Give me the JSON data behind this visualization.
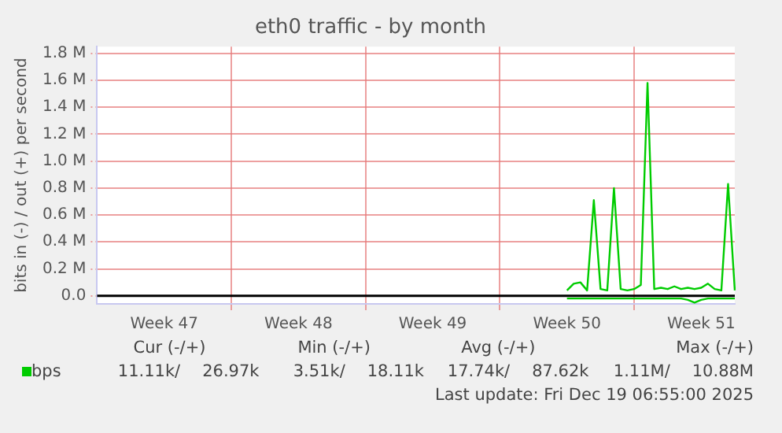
{
  "chart_data": {
    "type": "line",
    "title": "eth0 traffic - by month",
    "ylabel": "bits in (-) / out (+) per second",
    "categories": [
      null,
      null,
      null,
      null,
      null,
      null,
      null,
      null,
      null,
      null,
      "Week 47",
      null,
      null,
      null,
      null,
      null,
      null,
      null,
      null,
      null,
      null,
      null,
      null,
      null,
      null,
      null,
      null,
      null,
      null,
      null,
      "Week 48",
      null,
      null,
      null,
      null,
      null,
      null,
      null,
      null,
      null,
      null,
      null,
      null,
      null,
      null,
      null,
      null,
      null,
      null,
      null,
      "Week 49",
      null,
      null,
      null,
      null,
      null,
      null,
      null,
      null,
      null,
      null,
      null,
      null,
      null,
      null,
      null,
      null,
      null,
      null,
      null,
      "Week 50",
      null,
      null,
      null,
      null,
      null,
      null,
      null,
      null,
      null,
      null,
      null,
      null,
      null,
      null,
      null,
      null,
      null,
      null,
      null,
      "Week 51",
      null,
      null,
      null,
      null,
      null
    ],
    "ylim": [
      -0.06,
      1.85
    ],
    "yticks": [
      {
        "value": 0,
        "label": "0.0"
      },
      {
        "value": 0.2,
        "label": "0.2 M"
      },
      {
        "value": 0.4,
        "label": "0.4 M"
      },
      {
        "value": 0.6,
        "label": "0.6 M"
      },
      {
        "value": 0.8,
        "label": "0.8 M"
      },
      {
        "value": 1.0,
        "label": "1.0 M"
      },
      {
        "value": 1.2,
        "label": "1.2 M"
      },
      {
        "value": 1.4,
        "label": "1.4 M"
      },
      {
        "value": 1.6,
        "label": "1.6 M"
      },
      {
        "value": 1.8,
        "label": "1.8 M"
      }
    ],
    "grid": true,
    "legend": "bottom",
    "ref_lines": [
      {
        "axis": "y",
        "value": 0,
        "color": "#000000"
      }
    ],
    "series": [
      {
        "name": "bps",
        "color": "#00cc00",
        "values": [
          null,
          null,
          null,
          null,
          null,
          null,
          null,
          null,
          null,
          null,
          null,
          null,
          null,
          null,
          null,
          null,
          null,
          null,
          null,
          null,
          null,
          null,
          null,
          null,
          null,
          null,
          null,
          null,
          null,
          null,
          null,
          null,
          null,
          null,
          null,
          null,
          null,
          null,
          null,
          null,
          null,
          null,
          null,
          null,
          null,
          null,
          null,
          null,
          null,
          null,
          null,
          null,
          null,
          null,
          null,
          null,
          null,
          null,
          null,
          null,
          null,
          null,
          null,
          null,
          null,
          null,
          null,
          null,
          null,
          null,
          0.04,
          0.09,
          0.1,
          0.04,
          0.71,
          0.05,
          0.04,
          0.8,
          0.05,
          0.04,
          0.05,
          0.08,
          1.58,
          0.05,
          0.06,
          0.05,
          0.07,
          0.05,
          0.06,
          0.05,
          0.06,
          0.09,
          0.05,
          0.04,
          0.83,
          0.04
        ]
      },
      {
        "color": "#00cc00",
        "values": [
          null,
          null,
          null,
          null,
          null,
          null,
          null,
          null,
          null,
          null,
          null,
          null,
          null,
          null,
          null,
          null,
          null,
          null,
          null,
          null,
          null,
          null,
          null,
          null,
          null,
          null,
          null,
          null,
          null,
          null,
          null,
          null,
          null,
          null,
          null,
          null,
          null,
          null,
          null,
          null,
          null,
          null,
          null,
          null,
          null,
          null,
          null,
          null,
          null,
          null,
          null,
          null,
          null,
          null,
          null,
          null,
          null,
          null,
          null,
          null,
          null,
          null,
          null,
          null,
          null,
          null,
          null,
          null,
          null,
          null,
          -0.02,
          -0.02,
          -0.02,
          -0.02,
          -0.02,
          -0.02,
          -0.02,
          -0.02,
          -0.02,
          -0.02,
          -0.02,
          -0.02,
          -0.02,
          -0.02,
          -0.02,
          -0.02,
          -0.02,
          -0.02,
          -0.03,
          -0.05,
          -0.03,
          -0.02,
          -0.02,
          -0.02,
          -0.02,
          -0.02
        ]
      }
    ],
    "annotations": [
      "Cur (-/+)",
      "Min (-/+)",
      "Avg (-/+)",
      "Max (-/+)",
      "11.11k/",
      "26.97k",
      "3.51k/",
      "18.11k",
      "17.74k/",
      "87.62k",
      "1.11M/",
      "10.88M",
      "Last update: Fri Dec 19 06:55:00 2025"
    ]
  }
}
